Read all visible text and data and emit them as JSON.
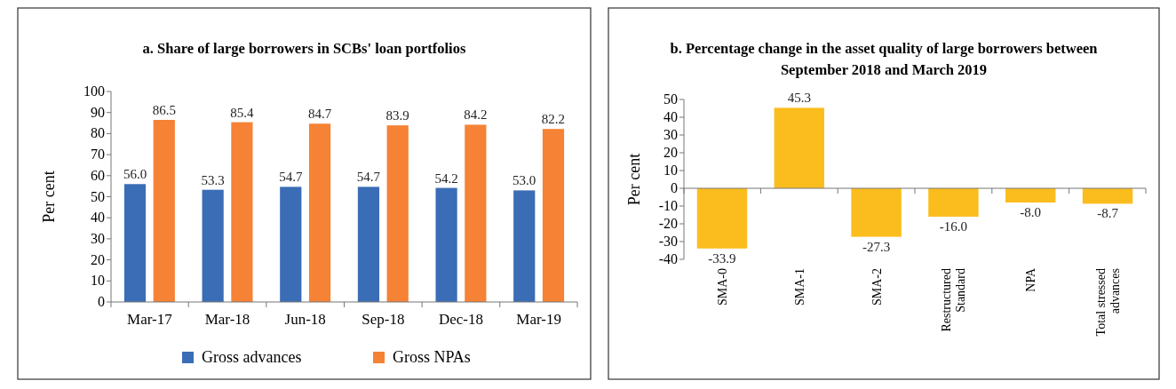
{
  "chart_data": [
    {
      "type": "bar",
      "title": "a. Share of large borrowers in SCBs' loan portfolios",
      "ylabel": "Per cent",
      "categories": [
        "Mar-17",
        "Mar-18",
        "Jun-18",
        "Sep-18",
        "Dec-18",
        "Mar-19"
      ],
      "series": [
        {
          "name": "Gross advances",
          "color": "#3a6db5",
          "values": [
            56.0,
            53.3,
            54.7,
            54.7,
            54.2,
            53.0
          ],
          "value_labels": [
            "56.0",
            "53.3",
            "54.7",
            "54.7",
            "54.2",
            "53.0"
          ]
        },
        {
          "name": "Gross NPAs",
          "color": "#f58235",
          "values": [
            86.5,
            85.4,
            84.7,
            83.9,
            84.2,
            82.2
          ],
          "value_labels": [
            "86.5",
            "85.4",
            "84.7",
            "83.9",
            "84.2",
            "82.2"
          ]
        }
      ],
      "ylim": [
        0,
        100
      ],
      "yticks": [
        0,
        10,
        20,
        30,
        40,
        50,
        60,
        70,
        80,
        90,
        100
      ],
      "legend": "bottom"
    },
    {
      "type": "bar",
      "title": "b. Percentage change in the asset quality of large borrowers between September 2018 and March 2019",
      "ylabel": "Per cent",
      "categories": [
        "SMA-0",
        "SMA-1",
        "SMA-2",
        "Restructured Standard",
        "NPA",
        "Total stressed advances"
      ],
      "series": [
        {
          "color": "#fbbd1e",
          "values": [
            -33.9,
            45.3,
            -27.3,
            -16.0,
            -8.0,
            -8.7
          ],
          "value_labels": [
            "-33.9",
            "45.3",
            "-27.3",
            "-16.0",
            "-8.0",
            "-8.7"
          ]
        }
      ],
      "ylim": [
        -40,
        50
      ],
      "yticks": [
        -40,
        -30,
        -20,
        -10,
        0,
        10,
        20,
        30,
        40,
        50
      ]
    }
  ]
}
